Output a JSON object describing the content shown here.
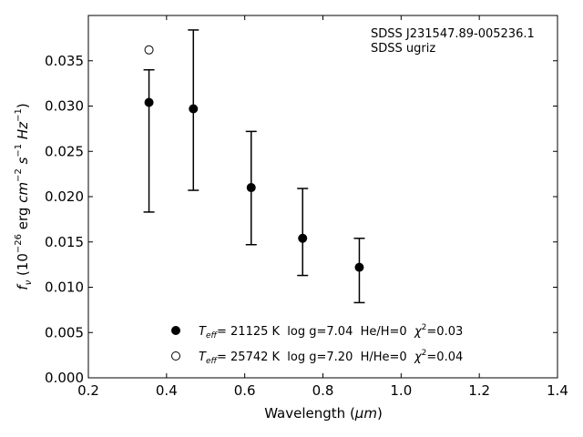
{
  "chart_data": {
    "type": "scatter",
    "xlabel_text": "Wavelength (",
    "xlabel_unit": "μm",
    "xlabel_close": ")",
    "ylabel": {
      "symbol": "f",
      "symbol_sub": "ν",
      "open": " (10",
      "exp": "−26",
      "unit_1": " erg ",
      "unit_cm": "cm",
      "unit_cm_exp": "−2",
      "unit_s": " s",
      "unit_s_exp": "−1",
      "unit_hz": " Hz",
      "unit_hz_exp": "−1",
      "close": ")"
    },
    "xlim": [
      0.2,
      1.4
    ],
    "ylim": [
      0.0,
      0.04
    ],
    "x_ticks": [
      "0.2",
      "0.4",
      "0.6",
      "0.8",
      "1.0",
      "1.2",
      "1.4"
    ],
    "x_tick_values": [
      0.2,
      0.4,
      0.6,
      0.8,
      1.0,
      1.2,
      1.4
    ],
    "y_ticks": [
      "0.000",
      "0.005",
      "0.010",
      "0.015",
      "0.020",
      "0.025",
      "0.030",
      "0.035"
    ],
    "y_tick_values": [
      0.0,
      0.005,
      0.01,
      0.015,
      0.02,
      0.025,
      0.03,
      0.035
    ],
    "grid": false,
    "ticks_direction": "in",
    "annotations": [
      "SDSS J231547.89-005236.1",
      "SDSS ugriz"
    ],
    "observed": [
      {
        "x": 0.3551,
        "y": 0.0304,
        "ylow": 0.0183,
        "yhigh": 0.034
      },
      {
        "x": 0.4686,
        "y": 0.0297,
        "ylow": 0.0207,
        "yhigh": 0.0384
      },
      {
        "x": 0.6165,
        "y": 0.021,
        "ylow": 0.0147,
        "yhigh": 0.0272
      },
      {
        "x": 0.7481,
        "y": 0.0154,
        "ylow": 0.0113,
        "yhigh": 0.0209
      },
      {
        "x": 0.8931,
        "y": 0.0122,
        "ylow": 0.0083,
        "yhigh": 0.0154
      }
    ],
    "model_points": [
      {
        "x": 0.3551,
        "y": 0.0362
      }
    ],
    "legend_position": "lower-center",
    "legend": [
      {
        "marker": "filled-circle",
        "t_sym": "T",
        "t_sub": "eff",
        "text": "= 21125 K  log g=7.04  He/H=0  ",
        "chi_sym": "χ",
        "chi_exp": "2",
        "chi_val": "=0.03"
      },
      {
        "marker": "open-circle",
        "t_sym": "T",
        "t_sub": "eff",
        "text": "= 25742 K  log g=7.20  H/He=0  ",
        "chi_sym": "χ",
        "chi_exp": "2",
        "chi_val": "=0.04"
      }
    ]
  }
}
